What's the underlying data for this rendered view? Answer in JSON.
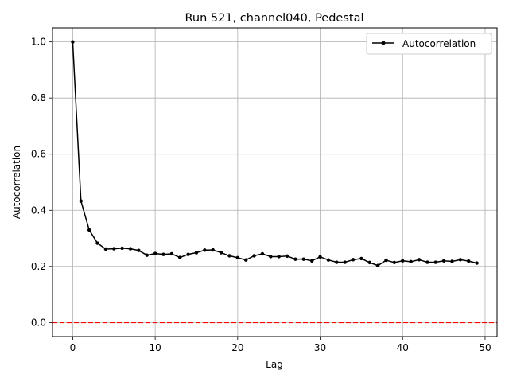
{
  "chart_data": {
    "type": "line",
    "title": "Run 521, channel040, Pedestal",
    "xlabel": "Lag",
    "ylabel": "Autocorrelation",
    "xlim": [
      -2.45,
      51.45
    ],
    "ylim": [
      -0.05,
      1.05
    ],
    "xticks": [
      0,
      10,
      20,
      30,
      40,
      50
    ],
    "yticks": [
      0.0,
      0.2,
      0.4,
      0.6,
      0.8,
      1.0
    ],
    "xtick_labels": [
      "0",
      "10",
      "20",
      "30",
      "40",
      "50"
    ],
    "ytick_labels": [
      "0.0",
      "0.2",
      "0.4",
      "0.6",
      "0.8",
      "1.0"
    ],
    "grid": true,
    "legend": {
      "position": "top-right",
      "entries": [
        "Autocorrelation"
      ]
    },
    "series": [
      {
        "name": "Autocorrelation",
        "color": "#000000",
        "marker": "circle",
        "x": [
          0,
          1,
          2,
          3,
          4,
          5,
          6,
          7,
          8,
          9,
          10,
          11,
          12,
          13,
          14,
          15,
          16,
          17,
          18,
          19,
          20,
          21,
          22,
          23,
          24,
          25,
          26,
          27,
          28,
          29,
          30,
          31,
          32,
          33,
          34,
          35,
          36,
          37,
          38,
          39,
          40,
          41,
          42,
          43,
          44,
          45,
          46,
          47,
          48,
          49
        ],
        "values": [
          1.0,
          0.433,
          0.33,
          0.283,
          0.262,
          0.263,
          0.265,
          0.263,
          0.257,
          0.24,
          0.246,
          0.243,
          0.245,
          0.232,
          0.243,
          0.249,
          0.258,
          0.259,
          0.249,
          0.238,
          0.231,
          0.223,
          0.238,
          0.245,
          0.235,
          0.235,
          0.237,
          0.226,
          0.226,
          0.22,
          0.234,
          0.223,
          0.215,
          0.215,
          0.224,
          0.228,
          0.214,
          0.203,
          0.222,
          0.214,
          0.22,
          0.217,
          0.224,
          0.215,
          0.215,
          0.22,
          0.218,
          0.224,
          0.219,
          0.212
        ]
      }
    ],
    "reference_line": {
      "y": 0.0,
      "color": "#ff0000",
      "style": "dashed"
    }
  }
}
